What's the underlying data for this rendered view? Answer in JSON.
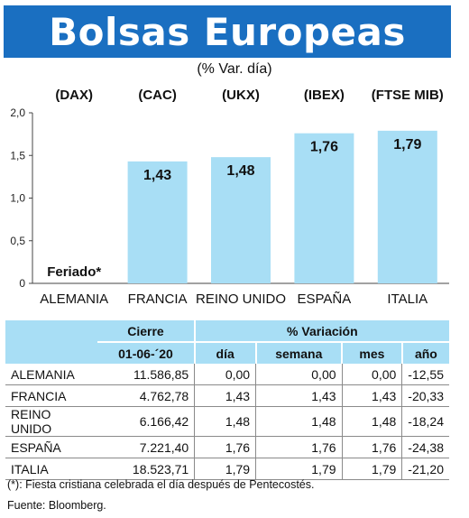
{
  "title": "Bolsas Europeas",
  "subtitle": "(% Var. día)",
  "chart_data": {
    "type": "bar",
    "categories": [
      "ALEMANIA",
      "FRANCIA",
      "REINO UNIDO",
      "ESPAÑA",
      "ITALIA"
    ],
    "indices": [
      "(DAX)",
      "(CAC)",
      "(UKX)",
      "(IBEX)",
      "(FTSE MIB)"
    ],
    "values": [
      null,
      1.43,
      1.48,
      1.76,
      1.79
    ],
    "value_labels": [
      "Feriado*",
      "1,43",
      "1,48",
      "1,76",
      "1,79"
    ],
    "yticks": [
      "0",
      "0,5",
      "1,0",
      "1,5",
      "2,0"
    ],
    "ylim": [
      0,
      2.0
    ],
    "bar_color": "#a8def5"
  },
  "table": {
    "header": {
      "cierre": "Cierre",
      "variacion": "% Variación",
      "date": "01-06-´20",
      "dia": "día",
      "semana": "semana",
      "mes": "mes",
      "ano": "año"
    },
    "rows": [
      {
        "name": "ALEMANIA",
        "close": "11.586,85",
        "dia": "0,00",
        "semana": "0,00",
        "mes": "0,00",
        "ano": "-12,55"
      },
      {
        "name": "FRANCIA",
        "close": "4.762,78",
        "dia": "1,43",
        "semana": "1,43",
        "mes": "1,43",
        "ano": "-20,33"
      },
      {
        "name": "REINO UNIDO",
        "close": "6.166,42",
        "dia": "1,48",
        "semana": "1,48",
        "mes": "1,48",
        "ano": "-18,24"
      },
      {
        "name": "ESPAÑA",
        "close": "7.221,40",
        "dia": "1,76",
        "semana": "1,76",
        "mes": "1,76",
        "ano": "-24,38"
      },
      {
        "name": "ITALIA",
        "close": "18.523,71",
        "dia": "1,79",
        "semana": "1,79",
        "mes": "1,79",
        "ano": "-21,20"
      }
    ]
  },
  "footnotes": {
    "note": "(*): Fiesta cristiana celebrada el día después de Pentecostés.",
    "source": "Fuente: Bloomberg."
  }
}
